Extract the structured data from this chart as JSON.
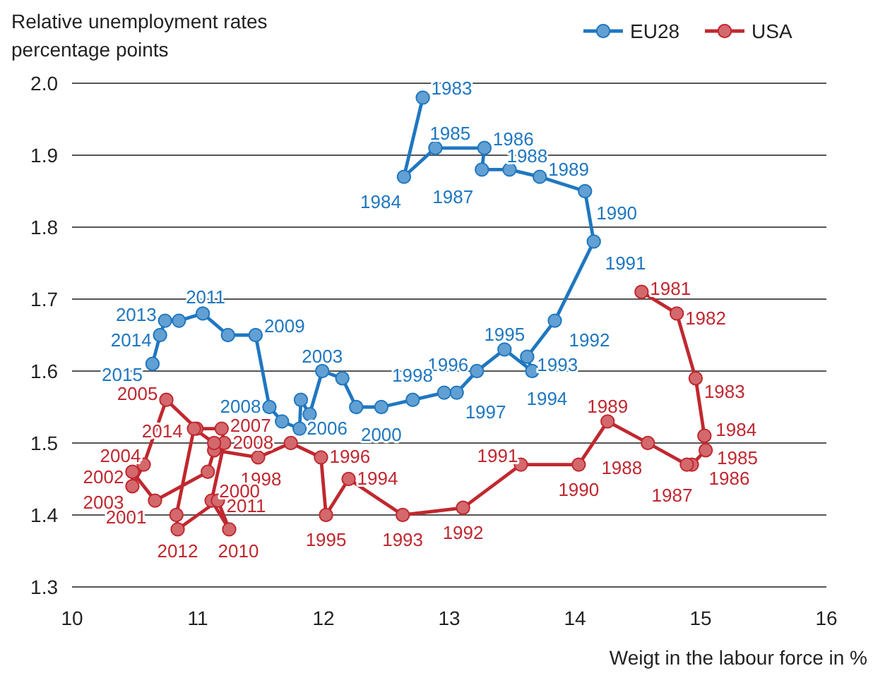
{
  "chart_data": {
    "type": "line",
    "ylabel": "Relative unemployment rates\npercentage points",
    "xlabel": "Weigt in the labour force in %",
    "xlim": [
      10,
      16
    ],
    "xticks": [
      10,
      11,
      12,
      13,
      14,
      15,
      16
    ],
    "ylim": [
      1.3,
      2.0
    ],
    "yticks": [
      {
        "value": 1.3,
        "label": "1.3"
      },
      {
        "value": 1.4,
        "label": "1.4"
      },
      {
        "value": 1.5,
        "label": "1.5"
      },
      {
        "value": 1.6,
        "label": "1.6"
      },
      {
        "value": 1.7,
        "label": "1.7"
      },
      {
        "value": 1.8,
        "label": "1.8"
      },
      {
        "value": 1.9,
        "label": "1.9"
      },
      {
        "value": 2.0,
        "label": "2.0"
      }
    ],
    "grid": "y",
    "legend": "top right",
    "marker": "circle",
    "line_style": "solid",
    "series": [
      {
        "name": "EU28",
        "color": "#1f77c0",
        "x": [
          12.79,
          12.64,
          12.89,
          13.28,
          13.26,
          13.48,
          13.72,
          14.08,
          14.15,
          13.84,
          13.62,
          13.66,
          13.44,
          13.22,
          13.06,
          12.96,
          12.71,
          12.46,
          12.26,
          12.15,
          11.99,
          11.89,
          11.82,
          11.81,
          11.67,
          11.57,
          11.46,
          11.24,
          11.04,
          10.85,
          10.74,
          10.7,
          10.64
        ],
        "values": [
          1.98,
          1.87,
          1.91,
          1.91,
          1.88,
          1.88,
          1.87,
          1.85,
          1.78,
          1.67,
          1.62,
          1.6,
          1.63,
          1.6,
          1.57,
          1.57,
          1.56,
          1.55,
          1.55,
          1.59,
          1.6,
          1.54,
          1.56,
          1.52,
          1.53,
          1.55,
          1.65,
          1.65,
          1.68,
          1.67,
          1.67,
          1.65,
          1.61
        ]
      },
      {
        "name": "USA",
        "color": "#c0282f",
        "x": [
          14.53,
          14.81,
          14.96,
          15.03,
          15.04,
          14.93,
          14.89,
          14.58,
          14.26,
          14.03,
          13.57,
          13.11,
          12.63,
          12.2,
          12.02,
          11.98,
          11.74,
          11.48,
          11.13,
          11.08,
          10.66,
          10.48,
          10.48,
          10.57,
          10.75,
          10.99,
          11.19,
          11.21,
          11.11,
          11.25,
          11.16,
          10.84,
          10.83,
          10.97,
          11.13
        ],
        "values": [
          1.71,
          1.68,
          1.59,
          1.51,
          1.49,
          1.47,
          1.47,
          1.5,
          1.53,
          1.47,
          1.47,
          1.41,
          1.4,
          1.45,
          1.4,
          1.48,
          1.5,
          1.48,
          1.49,
          1.46,
          1.42,
          1.46,
          1.44,
          1.47,
          1.56,
          1.52,
          1.52,
          1.5,
          1.42,
          1.38,
          1.42,
          1.38,
          1.4,
          1.52,
          1.5
        ]
      }
    ],
    "annotations": [
      {
        "text": "1983",
        "x": 12.79,
        "y": 1.98
      },
      {
        "text": "1984",
        "x": 12.64,
        "y": 1.87
      },
      {
        "text": "1985",
        "x": 12.89,
        "y": 1.91
      },
      {
        "text": "1986",
        "x": 13.28,
        "y": 1.91
      },
      {
        "text": "1987",
        "x": 13.26,
        "y": 1.88
      },
      {
        "text": "1988",
        "x": 13.48,
        "y": 1.88
      },
      {
        "text": "1989",
        "x": 13.72,
        "y": 1.87
      },
      {
        "text": "1990",
        "x": 14.08,
        "y": 1.85
      },
      {
        "text": "1991",
        "x": 14.15,
        "y": 1.78
      },
      {
        "text": "1992",
        "x": 13.84,
        "y": 1.67
      },
      {
        "text": "1993",
        "x": 13.62,
        "y": 1.62
      },
      {
        "text": "1994",
        "x": 13.66,
        "y": 1.6
      },
      {
        "text": "1995",
        "x": 13.44,
        "y": 1.63
      },
      {
        "text": "1996",
        "x": 13.22,
        "y": 1.6
      },
      {
        "text": "1997",
        "x": 13.06,
        "y": 1.57
      },
      {
        "text": "1998",
        "x": 12.96,
        "y": 1.57
      },
      {
        "text": "2000",
        "x": 12.46,
        "y": 1.55
      },
      {
        "text": "2003",
        "x": 11.99,
        "y": 1.6
      },
      {
        "text": "2006",
        "x": 11.81,
        "y": 1.52
      },
      {
        "text": "2008",
        "x": 11.57,
        "y": 1.55
      },
      {
        "text": "2009",
        "x": 11.46,
        "y": 1.65
      },
      {
        "text": "2011",
        "x": 11.04,
        "y": 1.68
      },
      {
        "text": "2013",
        "x": 10.74,
        "y": 1.67
      },
      {
        "text": "2014",
        "x": 10.7,
        "y": 1.65
      },
      {
        "text": "2015",
        "x": 10.64,
        "y": 1.61
      },
      {
        "text": "1981",
        "x": 14.53,
        "y": 1.71
      },
      {
        "text": "1982",
        "x": 14.81,
        "y": 1.68
      },
      {
        "text": "1983",
        "x": 14.96,
        "y": 1.59
      },
      {
        "text": "1984",
        "x": 15.03,
        "y": 1.51
      },
      {
        "text": "1985",
        "x": 15.04,
        "y": 1.49
      },
      {
        "text": "1986",
        "x": 14.93,
        "y": 1.47
      },
      {
        "text": "1987",
        "x": 14.89,
        "y": 1.47
      },
      {
        "text": "1988",
        "x": 14.58,
        "y": 1.5
      },
      {
        "text": "1989",
        "x": 14.26,
        "y": 1.53
      },
      {
        "text": "1990",
        "x": 14.03,
        "y": 1.47
      },
      {
        "text": "1991",
        "x": 13.57,
        "y": 1.47
      },
      {
        "text": "1992",
        "x": 13.11,
        "y": 1.41
      },
      {
        "text": "1993",
        "x": 12.63,
        "y": 1.4
      },
      {
        "text": "1994",
        "x": 12.2,
        "y": 1.45
      },
      {
        "text": "1995",
        "x": 12.02,
        "y": 1.4
      },
      {
        "text": "1996",
        "x": 11.98,
        "y": 1.48
      },
      {
        "text": "1998",
        "x": 11.48,
        "y": 1.48
      },
      {
        "text": "2000",
        "x": 11.08,
        "y": 1.46
      },
      {
        "text": "2001",
        "x": 10.66,
        "y": 1.42
      },
      {
        "text": "2002",
        "x": 10.48,
        "y": 1.46
      },
      {
        "text": "2003",
        "x": 10.48,
        "y": 1.44
      },
      {
        "text": "2004",
        "x": 10.57,
        "y": 1.47
      },
      {
        "text": "2005",
        "x": 10.75,
        "y": 1.56
      },
      {
        "text": "2007",
        "x": 11.19,
        "y": 1.52
      },
      {
        "text": "2008",
        "x": 11.21,
        "y": 1.5
      },
      {
        "text": "2010",
        "x": 11.25,
        "y": 1.38
      },
      {
        "text": "2011",
        "x": 11.16,
        "y": 1.42
      },
      {
        "text": "2012",
        "x": 10.84,
        "y": 1.38
      },
      {
        "text": "2014",
        "x": 10.97,
        "y": 1.52
      }
    ]
  }
}
